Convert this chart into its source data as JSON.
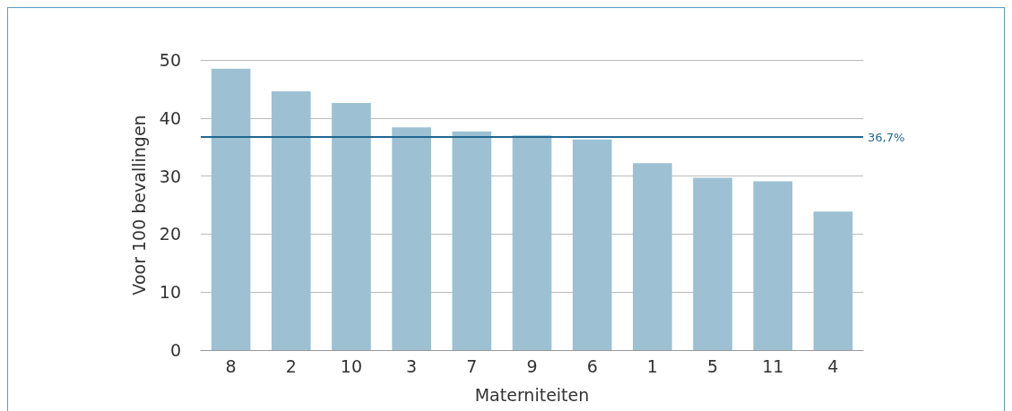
{
  "chart_data": {
    "type": "bar",
    "xlabel": "Materniteiten",
    "ylabel": "Voor 100 bevallingen",
    "categories": [
      "8",
      "2",
      "10",
      "3",
      "7",
      "9",
      "6",
      "1",
      "5",
      "11",
      "4"
    ],
    "values": [
      48.5,
      44.6,
      42.6,
      38.4,
      37.7,
      37.0,
      36.3,
      32.2,
      29.7,
      29.1,
      23.9
    ],
    "color": "#9dc1d3",
    "ylim": [
      0,
      50
    ],
    "yticks": [
      0,
      10,
      20,
      30,
      40,
      50
    ],
    "grid": "y",
    "ref_lines": [
      {
        "axis": "y",
        "value": 36.7,
        "label": "36,7%",
        "color": "#1f6690"
      }
    ]
  }
}
